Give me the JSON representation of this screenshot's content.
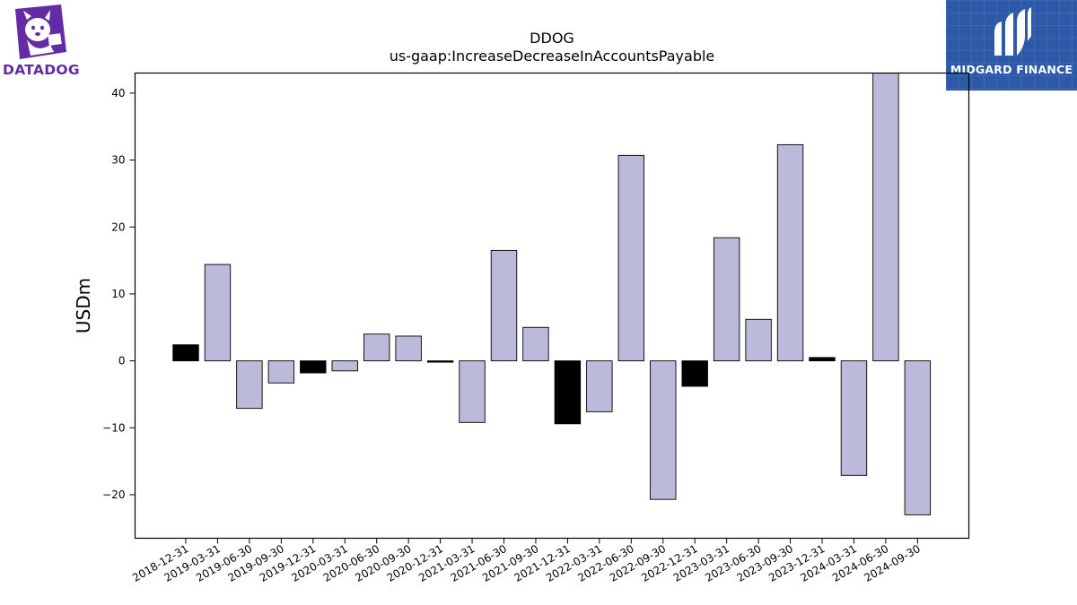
{
  "logos": {
    "left_text": "DATADOG",
    "right_text": "MIDGARD FINANCE",
    "left_color": "#632ca6",
    "right_color": "#2d5aa8"
  },
  "chart_data": {
    "type": "bar",
    "title": "DDOG",
    "subtitle": "us-gaap:IncreaseDecreaseInAccountsPayable",
    "xlabel": "",
    "ylabel": "USDm",
    "ylim": [
      -26.5,
      43
    ],
    "yticks": [
      -20,
      -10,
      0,
      10,
      20,
      30,
      40
    ],
    "ytick_labels": [
      "−20",
      "−10",
      "0",
      "10",
      "20",
      "30",
      "40"
    ],
    "grid": false,
    "categories": [
      "2018-12-31",
      "2019-03-31",
      "2019-06-30",
      "2019-09-30",
      "2019-12-31",
      "2020-03-31",
      "2020-06-30",
      "2020-09-30",
      "2020-12-31",
      "2021-03-31",
      "2021-06-30",
      "2021-09-30",
      "2021-12-31",
      "2022-03-31",
      "2022-06-30",
      "2022-09-30",
      "2022-12-31",
      "2023-03-31",
      "2023-06-30",
      "2023-09-30",
      "2023-12-31",
      "2024-03-31",
      "2024-06-30",
      "2024-09-30"
    ],
    "values": [
      2.4,
      14.4,
      -7.1,
      -3.3,
      -1.8,
      -1.5,
      4.0,
      3.7,
      -0.2,
      -9.2,
      16.5,
      5.0,
      -9.4,
      -7.6,
      30.7,
      -20.7,
      -3.8,
      18.4,
      6.2,
      32.3,
      0.5,
      -17.1,
      43.0,
      -23.0
    ],
    "highlight": [
      true,
      false,
      false,
      false,
      true,
      false,
      false,
      false,
      true,
      false,
      false,
      false,
      true,
      false,
      false,
      false,
      true,
      false,
      false,
      false,
      true,
      false,
      false,
      false
    ],
    "colors": {
      "bar": "#bcbadb",
      "highlight": "#000000",
      "edge": "#000000"
    }
  }
}
